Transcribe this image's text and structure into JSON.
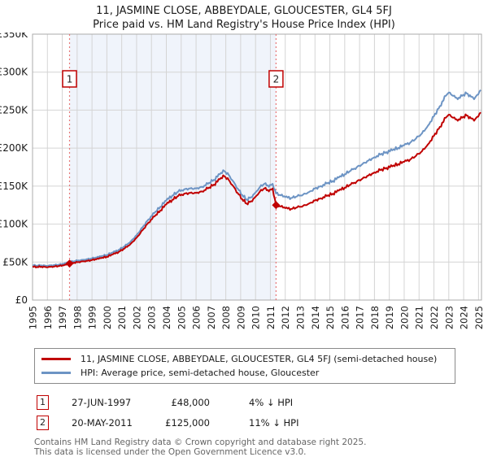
{
  "header": {
    "title": "11, JASMINE CLOSE, ABBEYDALE, GLOUCESTER, GL4 5FJ",
    "subtitle": "Price paid vs. HM Land Registry's House Price Index (HPI)"
  },
  "legend": {
    "items": [
      {
        "label": "11, JASMINE CLOSE, ABBEYDALE, GLOUCESTER, GL4 5FJ (semi-detached house)"
      },
      {
        "label": "HPI: Average price, semi-detached house, Gloucester"
      }
    ]
  },
  "footer": {
    "line1": "Contains HM Land Registry data © Crown copyright and database right 2025.",
    "line2": "This data is licensed under the Open Government Licence v3.0."
  },
  "chart_data": {
    "type": "line",
    "title": "11, JASMINE CLOSE, ABBEYDALE, GLOUCESTER, GL4 5FJ",
    "subtitle": "Price paid vs. HM Land Registry's House Price Index (HPI)",
    "units": "GBP thousands",
    "ylim": [
      0,
      350
    ],
    "xlim": [
      1995,
      2025.2
    ],
    "grid": true,
    "legend_position": "bottom",
    "yticks": [
      {
        "v": 0,
        "label": "£0"
      },
      {
        "v": 50,
        "label": "£50K"
      },
      {
        "v": 100,
        "label": "£100K"
      },
      {
        "v": 150,
        "label": "£150K"
      },
      {
        "v": 200,
        "label": "£200K"
      },
      {
        "v": 250,
        "label": "£250K"
      },
      {
        "v": 300,
        "label": "£300K"
      },
      {
        "v": 350,
        "label": "£350K"
      }
    ],
    "xticks": [
      1995,
      1996,
      1997,
      1998,
      1999,
      2000,
      2001,
      2002,
      2003,
      2004,
      2005,
      2006,
      2007,
      2008,
      2009,
      2010,
      2011,
      2012,
      2013,
      2014,
      2015,
      2016,
      2017,
      2018,
      2019,
      2020,
      2021,
      2022,
      2023,
      2024,
      2025
    ],
    "colors": {
      "grid": "#d4d4d4",
      "border": "#ababab",
      "shade": "#f0f4fb",
      "event_line": "#e87878",
      "marker": "#c00000",
      "tick_text": "#1a1a1a"
    },
    "shaded_region": {
      "from": 1997.49,
      "to": 2011.38
    },
    "events": [
      {
        "n": "1",
        "t": 1997.49,
        "value": 48,
        "date": "27-JUN-1997",
        "price": "£48,000",
        "note": "4% ↓ HPI"
      },
      {
        "n": "2",
        "t": 2011.38,
        "value": 125,
        "date": "20-MAY-2011",
        "price": "£125,000",
        "note": "11% ↓ HPI"
      }
    ],
    "series": [
      {
        "name": "11, JASMINE CLOSE, ABBEYDALE, GLOUCESTER, GL4 5FJ (semi-detached house)",
        "color": "#c00000",
        "anchors": [
          1997.49,
          2011.38
        ],
        "points": [
          [
            1995.0,
            44
          ],
          [
            1995.3,
            43.6
          ],
          [
            1995.6,
            43.9
          ],
          [
            1995.9,
            43.4
          ],
          [
            1996.2,
            43.8
          ],
          [
            1996.5,
            44.2
          ],
          [
            1996.8,
            44.7
          ],
          [
            1997.1,
            45.6
          ],
          [
            1997.49,
            48
          ],
          [
            1997.8,
            49.2
          ],
          [
            1998.1,
            50.1
          ],
          [
            1998.4,
            50.9
          ],
          [
            1998.7,
            51.6
          ],
          [
            1999.0,
            52.6
          ],
          [
            1999.3,
            53.6
          ],
          [
            1999.6,
            55.1
          ],
          [
            2000.0,
            57
          ],
          [
            2000.4,
            60
          ],
          [
            2000.8,
            63.5
          ],
          [
            2001.2,
            68
          ],
          [
            2001.6,
            74
          ],
          [
            2002.0,
            82
          ],
          [
            2002.4,
            92
          ],
          [
            2002.8,
            102
          ],
          [
            2003.2,
            110
          ],
          [
            2003.6,
            118
          ],
          [
            2004.0,
            126
          ],
          [
            2004.4,
            132
          ],
          [
            2004.8,
            137
          ],
          [
            2005.2,
            140
          ],
          [
            2005.6,
            141
          ],
          [
            2006.0,
            141
          ],
          [
            2006.4,
            143
          ],
          [
            2006.8,
            147
          ],
          [
            2007.2,
            152
          ],
          [
            2007.6,
            159
          ],
          [
            2007.9,
            163
          ],
          [
            2008.2,
            158
          ],
          [
            2008.5,
            150
          ],
          [
            2008.8,
            141
          ],
          [
            2009.1,
            133
          ],
          [
            2009.4,
            127
          ],
          [
            2009.7,
            130
          ],
          [
            2010.0,
            136
          ],
          [
            2010.3,
            143
          ],
          [
            2010.6,
            147
          ],
          [
            2010.9,
            143
          ],
          [
            2011.15,
            147
          ],
          [
            2011.38,
            125
          ],
          [
            2011.7,
            123
          ],
          [
            2012.0,
            121
          ],
          [
            2012.4,
            120
          ],
          [
            2012.8,
            122
          ],
          [
            2013.2,
            124
          ],
          [
            2013.6,
            127
          ],
          [
            2014.0,
            131
          ],
          [
            2014.4,
            134
          ],
          [
            2014.8,
            137
          ],
          [
            2015.2,
            140
          ],
          [
            2015.6,
            144
          ],
          [
            2016.0,
            148
          ],
          [
            2016.4,
            152
          ],
          [
            2016.8,
            156
          ],
          [
            2017.2,
            160
          ],
          [
            2017.6,
            164
          ],
          [
            2018.0,
            168
          ],
          [
            2018.4,
            171
          ],
          [
            2018.8,
            174
          ],
          [
            2019.2,
            176
          ],
          [
            2019.6,
            179
          ],
          [
            2020.0,
            182
          ],
          [
            2020.4,
            185
          ],
          [
            2020.8,
            190
          ],
          [
            2021.2,
            196
          ],
          [
            2021.6,
            205
          ],
          [
            2022.0,
            216
          ],
          [
            2022.4,
            228
          ],
          [
            2022.8,
            240
          ],
          [
            2023.0,
            244
          ],
          [
            2023.3,
            240
          ],
          [
            2023.6,
            236
          ],
          [
            2023.9,
            240
          ],
          [
            2024.2,
            243
          ],
          [
            2024.5,
            239
          ],
          [
            2024.7,
            236
          ],
          [
            2024.9,
            241
          ],
          [
            2025.15,
            247
          ]
        ]
      },
      {
        "name": "HPI: Average price, semi-detached house, Gloucester",
        "color": "#6d94c4",
        "anchors": [],
        "points": [
          [
            1995.0,
            45.8
          ],
          [
            1995.3,
            45.4
          ],
          [
            1995.6,
            45.7
          ],
          [
            1995.9,
            45.2
          ],
          [
            1996.2,
            45.6
          ],
          [
            1996.5,
            46.0
          ],
          [
            1996.8,
            46.5
          ],
          [
            1997.1,
            47.5
          ],
          [
            1997.49,
            50
          ],
          [
            1997.8,
            51.2
          ],
          [
            1998.1,
            52.2
          ],
          [
            1998.4,
            53.0
          ],
          [
            1998.7,
            53.8
          ],
          [
            1999.0,
            54.8
          ],
          [
            1999.3,
            55.8
          ],
          [
            1999.6,
            57.4
          ],
          [
            2000.0,
            59.4
          ],
          [
            2000.4,
            62.5
          ],
          [
            2000.8,
            66.1
          ],
          [
            2001.2,
            70.8
          ],
          [
            2001.6,
            77.1
          ],
          [
            2002.0,
            85.4
          ],
          [
            2002.4,
            95.8
          ],
          [
            2002.8,
            106.2
          ],
          [
            2003.2,
            114.6
          ],
          [
            2003.6,
            122.9
          ],
          [
            2004.0,
            131.2
          ],
          [
            2004.4,
            137.5
          ],
          [
            2004.8,
            142.7
          ],
          [
            2005.2,
            145.8
          ],
          [
            2005.6,
            146.9
          ],
          [
            2006.0,
            146.9
          ],
          [
            2006.4,
            149.0
          ],
          [
            2006.8,
            153.1
          ],
          [
            2007.2,
            158.3
          ],
          [
            2007.6,
            165.6
          ],
          [
            2007.9,
            169.8
          ],
          [
            2008.2,
            164.6
          ],
          [
            2008.5,
            156.2
          ],
          [
            2008.8,
            146.9
          ],
          [
            2009.1,
            138.5
          ],
          [
            2009.4,
            132.3
          ],
          [
            2009.7,
            135.4
          ],
          [
            2010.0,
            141.7
          ],
          [
            2010.3,
            149.0
          ],
          [
            2010.6,
            153.1
          ],
          [
            2010.9,
            149.0
          ],
          [
            2011.15,
            153.1
          ],
          [
            2011.38,
            140.4
          ],
          [
            2011.7,
            137.8
          ],
          [
            2012.0,
            135.5
          ],
          [
            2012.4,
            134.4
          ],
          [
            2012.8,
            136.6
          ],
          [
            2013.2,
            138.9
          ],
          [
            2013.6,
            142.2
          ],
          [
            2014.0,
            146.7
          ],
          [
            2014.4,
            150.1
          ],
          [
            2014.8,
            153.4
          ],
          [
            2015.2,
            156.8
          ],
          [
            2015.6,
            161.3
          ],
          [
            2016.0,
            165.7
          ],
          [
            2016.4,
            170.2
          ],
          [
            2016.8,
            174.7
          ],
          [
            2017.2,
            179.2
          ],
          [
            2017.6,
            183.7
          ],
          [
            2018.0,
            188.1
          ],
          [
            2018.4,
            191.5
          ],
          [
            2018.8,
            194.8
          ],
          [
            2019.2,
            197.1
          ],
          [
            2019.6,
            200.4
          ],
          [
            2020.0,
            203.8
          ],
          [
            2020.4,
            207.2
          ],
          [
            2020.8,
            212.8
          ],
          [
            2021.2,
            219.5
          ],
          [
            2021.6,
            229.6
          ],
          [
            2022.0,
            241.9
          ],
          [
            2022.4,
            255.3
          ],
          [
            2022.8,
            268.8
          ],
          [
            2023.0,
            273.2
          ],
          [
            2023.3,
            268.8
          ],
          [
            2023.6,
            264.3
          ],
          [
            2023.9,
            268.8
          ],
          [
            2024.2,
            272.1
          ],
          [
            2024.5,
            267.6
          ],
          [
            2024.7,
            264.3
          ],
          [
            2024.9,
            269.9
          ],
          [
            2025.15,
            276.6
          ]
        ]
      }
    ]
  }
}
